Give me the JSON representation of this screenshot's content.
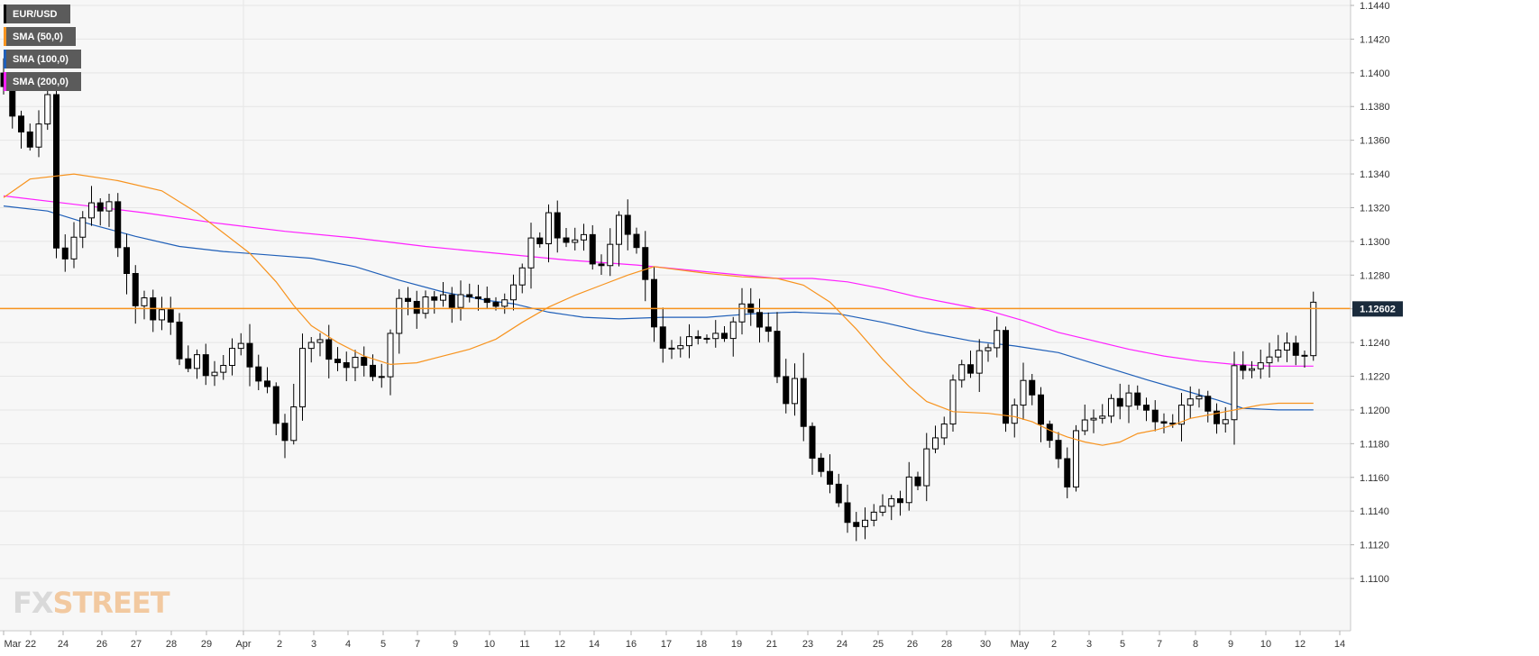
{
  "chart_data": {
    "type": "candlestick",
    "symbol": "EUR/USD",
    "ylim": [
      1.11,
      1.144
    ],
    "yticks": [
      "1.1100",
      "1.1120",
      "1.1140",
      "1.1160",
      "1.1180",
      "1.1200",
      "1.1220",
      "1.1240",
      "1.1260",
      "1.1280",
      "1.1300",
      "1.1320",
      "1.1340",
      "1.1360",
      "1.1380",
      "1.1400",
      "1.1420",
      "1.1440"
    ],
    "xticks": [
      "Mar",
      "22",
      "24",
      "26",
      "27",
      "28",
      "29",
      "Apr",
      "2",
      "3",
      "4",
      "5",
      "7",
      "9",
      "10",
      "11",
      "12",
      "14",
      "16",
      "17",
      "18",
      "19",
      "21",
      "23",
      "24",
      "25",
      "26",
      "28",
      "30",
      "May",
      "2",
      "3",
      "5",
      "7",
      "8",
      "9",
      "10",
      "12",
      "14"
    ],
    "current_price": 1.12602,
    "current_price_label": "1.12602",
    "legend": [
      {
        "label": "EUR/USD",
        "color": "#000000"
      },
      {
        "label": "SMA (50,0)",
        "color": "#f7931e"
      },
      {
        "label": "SMA (100,0)",
        "color": "#1f5fb8"
      },
      {
        "label": "SMA (200,0)",
        "color": "#ff1fff"
      }
    ],
    "colors": {
      "up": "#ffffff",
      "down": "#000000",
      "price_line": "#f7931e",
      "sma50": "#f7931e",
      "sma100": "#1f5fb8",
      "sma200": "#ff1fff"
    },
    "close_path": [
      [
        0,
        1.139
      ],
      [
        3,
        1.135
      ],
      [
        5,
        1.1385
      ],
      [
        6,
        1.13
      ],
      [
        7,
        1.1285
      ],
      [
        8,
        1.13
      ],
      [
        10,
        1.132
      ],
      [
        12,
        1.132
      ],
      [
        14,
        1.128
      ],
      [
        15,
        1.1265
      ],
      [
        16,
        1.127
      ],
      [
        17,
        1.125
      ],
      [
        18,
        1.1255
      ],
      [
        19,
        1.1248
      ],
      [
        20,
        1.1235
      ],
      [
        21,
        1.1225
      ],
      [
        22,
        1.123
      ],
      [
        23,
        1.1222
      ],
      [
        25,
        1.1228
      ],
      [
        27,
        1.1235
      ],
      [
        29,
        1.1218
      ],
      [
        30,
        1.121
      ],
      [
        31,
        1.1196
      ],
      [
        32,
        1.1186
      ],
      [
        33,
        1.1204
      ],
      [
        34,
        1.1238
      ],
      [
        35,
        1.124
      ],
      [
        36,
        1.1236
      ],
      [
        38,
        1.1225
      ],
      [
        40,
        1.1232
      ],
      [
        41,
        1.1222
      ],
      [
        42,
        1.1216
      ],
      [
        43,
        1.1222
      ],
      [
        44,
        1.1245
      ],
      [
        45,
        1.1262
      ],
      [
        47,
        1.1262
      ],
      [
        49,
        1.127
      ],
      [
        51,
        1.1262
      ],
      [
        53,
        1.127
      ],
      [
        55,
        1.1265
      ],
      [
        57,
        1.126
      ],
      [
        59,
        1.129
      ],
      [
        60,
        1.1305
      ],
      [
        61,
        1.1303
      ],
      [
        62,
        1.1315
      ],
      [
        63,
        1.1308
      ],
      [
        64,
        1.1302
      ],
      [
        66,
        1.1305
      ],
      [
        67,
        1.129
      ],
      [
        68,
        1.1282
      ],
      [
        70,
        1.1315
      ],
      [
        71,
        1.13
      ],
      [
        72,
        1.1295
      ],
      [
        73,
        1.1275
      ],
      [
        74,
        1.1255
      ],
      [
        75,
        1.1236
      ],
      [
        77,
        1.1238
      ],
      [
        79,
        1.1245
      ],
      [
        81,
        1.124
      ],
      [
        83,
        1.1252
      ],
      [
        84,
        1.1258
      ],
      [
        86,
        1.1255
      ],
      [
        87,
        1.1245
      ],
      [
        88,
        1.1218
      ],
      [
        89,
        1.1205
      ],
      [
        90,
        1.1215
      ],
      [
        91,
        1.1188
      ],
      [
        93,
        1.116
      ],
      [
        94,
        1.115
      ],
      [
        95,
        1.1145
      ],
      [
        96,
        1.1137
      ],
      [
        97,
        1.113
      ],
      [
        99,
        1.1135
      ],
      [
        100,
        1.1142
      ],
      [
        101,
        1.1145
      ],
      [
        102,
        1.115
      ],
      [
        104,
        1.116
      ],
      [
        105,
        1.118
      ],
      [
        107,
        1.1188
      ],
      [
        108,
        1.122
      ],
      [
        110,
        1.1225
      ],
      [
        112,
        1.1238
      ],
      [
        113,
        1.1248
      ],
      [
        114,
        1.1198
      ],
      [
        115,
        1.1205
      ],
      [
        116,
        1.1215
      ],
      [
        117,
        1.1205
      ],
      [
        118,
        1.1188
      ],
      [
        119,
        1.1176
      ],
      [
        120,
        1.117
      ],
      [
        121,
        1.115
      ],
      [
        122,
        1.119
      ],
      [
        123,
        1.12
      ],
      [
        125,
        1.1196
      ],
      [
        126,
        1.1205
      ],
      [
        127,
        1.12
      ],
      [
        128,
        1.1208
      ],
      [
        130,
        1.1198
      ],
      [
        131,
        1.1188
      ],
      [
        132,
        1.119
      ],
      [
        134,
        1.1202
      ],
      [
        135,
        1.121
      ],
      [
        136,
        1.1206
      ],
      [
        137,
        1.12
      ],
      [
        138,
        1.1194
      ],
      [
        139,
        1.1192
      ],
      [
        140,
        1.1228
      ],
      [
        141,
        1.1225
      ],
      [
        143,
        1.123
      ],
      [
        144,
        1.1236
      ],
      [
        146,
        1.1234
      ],
      [
        147,
        1.123
      ],
      [
        148,
        1.1232
      ],
      [
        149,
        1.126
      ]
    ],
    "sma50": [
      [
        0,
        1.1326
      ],
      [
        3,
        1.1337
      ],
      [
        8,
        1.134
      ],
      [
        13,
        1.1336
      ],
      [
        18,
        1.133
      ],
      [
        22,
        1.1317
      ],
      [
        25,
        1.1305
      ],
      [
        28,
        1.1293
      ],
      [
        31,
        1.1276
      ],
      [
        33,
        1.1262
      ],
      [
        35,
        1.125
      ],
      [
        38,
        1.124
      ],
      [
        41,
        1.1232
      ],
      [
        44,
        1.1227
      ],
      [
        47,
        1.1228
      ],
      [
        50,
        1.1232
      ],
      [
        53,
        1.1236
      ],
      [
        56,
        1.1242
      ],
      [
        59,
        1.1252
      ],
      [
        62,
        1.1261
      ],
      [
        65,
        1.1268
      ],
      [
        68,
        1.1274
      ],
      [
        71,
        1.128
      ],
      [
        74,
        1.1285
      ],
      [
        77,
        1.1283
      ],
      [
        80,
        1.1281
      ],
      [
        84,
        1.1279
      ],
      [
        88,
        1.1278
      ],
      [
        91,
        1.1274
      ],
      [
        94,
        1.1264
      ],
      [
        97,
        1.1248
      ],
      [
        100,
        1.123
      ],
      [
        103,
        1.1214
      ],
      [
        105,
        1.1205
      ],
      [
        108,
        1.1199
      ],
      [
        112,
        1.1198
      ],
      [
        115,
        1.1196
      ],
      [
        117,
        1.1193
      ],
      [
        119,
        1.1188
      ],
      [
        121,
        1.1184
      ],
      [
        123,
        1.1181
      ],
      [
        125,
        1.1179
      ],
      [
        127,
        1.1181
      ],
      [
        129,
        1.1186
      ],
      [
        131,
        1.1188
      ],
      [
        133,
        1.1191
      ],
      [
        135,
        1.1195
      ],
      [
        137,
        1.1197
      ],
      [
        139,
        1.1199
      ],
      [
        141,
        1.1201
      ],
      [
        143,
        1.1203
      ],
      [
        145,
        1.1204
      ],
      [
        147,
        1.1204
      ],
      [
        149,
        1.1204
      ]
    ],
    "sma100": [
      [
        0,
        1.1321
      ],
      [
        5,
        1.1318
      ],
      [
        10,
        1.131
      ],
      [
        15,
        1.1303
      ],
      [
        20,
        1.1297
      ],
      [
        25,
        1.1294
      ],
      [
        30,
        1.1292
      ],
      [
        35,
        1.129
      ],
      [
        40,
        1.1285
      ],
      [
        45,
        1.1277
      ],
      [
        50,
        1.127
      ],
      [
        55,
        1.1265
      ],
      [
        58,
        1.1263
      ],
      [
        62,
        1.1258
      ],
      [
        66,
        1.1255
      ],
      [
        70,
        1.1254
      ],
      [
        75,
        1.1255
      ],
      [
        80,
        1.1255
      ],
      [
        85,
        1.1257
      ],
      [
        90,
        1.1258
      ],
      [
        95,
        1.1257
      ],
      [
        100,
        1.1252
      ],
      [
        105,
        1.1246
      ],
      [
        110,
        1.1241
      ],
      [
        115,
        1.1238
      ],
      [
        120,
        1.1234
      ],
      [
        125,
        1.1226
      ],
      [
        130,
        1.1218
      ],
      [
        134,
        1.1212
      ],
      [
        138,
        1.1206
      ],
      [
        141,
        1.1201
      ],
      [
        145,
        1.12
      ],
      [
        149,
        1.12
      ]
    ],
    "sma200": [
      [
        0,
        1.1327
      ],
      [
        8,
        1.1322
      ],
      [
        16,
        1.1317
      ],
      [
        24,
        1.1311
      ],
      [
        32,
        1.1306
      ],
      [
        40,
        1.1302
      ],
      [
        48,
        1.1297
      ],
      [
        56,
        1.1293
      ],
      [
        64,
        1.1289
      ],
      [
        72,
        1.1286
      ],
      [
        80,
        1.1282
      ],
      [
        88,
        1.1278
      ],
      [
        92,
        1.1278
      ],
      [
        96,
        1.1276
      ],
      [
        100,
        1.1272
      ],
      [
        104,
        1.1267
      ],
      [
        108,
        1.1263
      ],
      [
        112,
        1.1259
      ],
      [
        116,
        1.1253
      ],
      [
        120,
        1.1246
      ],
      [
        124,
        1.1241
      ],
      [
        128,
        1.1236
      ],
      [
        132,
        1.1232
      ],
      [
        136,
        1.1229
      ],
      [
        140,
        1.1227
      ],
      [
        144,
        1.1226
      ],
      [
        149,
        1.1226
      ]
    ],
    "watermark": {
      "fx": "FX",
      "street": "STREET"
    }
  }
}
